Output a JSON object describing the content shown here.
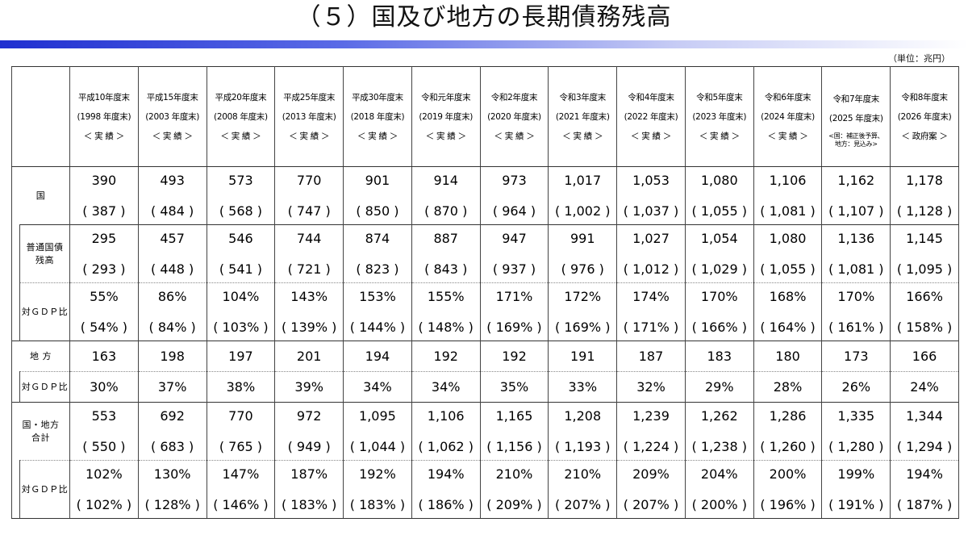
{
  "title": "（５）国及び地方の長期債務残高",
  "unit": "（単位：兆円）",
  "columns": [
    {
      "era": "平成10年度末",
      "year": "(1998 年度末)",
      "status": "＜ 実 績 ＞"
    },
    {
      "era": "平成15年度末",
      "year": "(2003 年度末)",
      "status": "＜ 実 績 ＞"
    },
    {
      "era": "平成20年度末",
      "year": "(2008 年度末)",
      "status": "＜ 実 績 ＞"
    },
    {
      "era": "平成25年度末",
      "year": "(2013 年度末)",
      "status": "＜ 実 績 ＞"
    },
    {
      "era": "平成30年度末",
      "year": "(2018 年度末)",
      "status": "＜ 実 績 ＞"
    },
    {
      "era": "令和元年度末",
      "year": "(2019 年度末)",
      "status": "＜ 実 績 ＞"
    },
    {
      "era": "令和2年度末",
      "year": "(2020 年度末)",
      "status": "＜ 実 績 ＞"
    },
    {
      "era": "令和3年度末",
      "year": "(2021 年度末)",
      "status": "＜ 実 績 ＞"
    },
    {
      "era": "令和4年度末",
      "year": "(2022 年度末)",
      "status": "＜ 実 績 ＞"
    },
    {
      "era": "令和5年度末",
      "year": "(2023 年度末)",
      "status": "＜ 実 績 ＞"
    },
    {
      "era": "令和6年度末",
      "year": "(2024 年度末)",
      "status": "＜ 実 績 ＞"
    },
    {
      "era": "令和7年度末",
      "year": "(2025 年度末)",
      "status": "",
      "note1": "<国：補正後予算、",
      "note2": "地方：見込み>"
    },
    {
      "era": "令和8年度末",
      "year": "(2026 年度末)",
      "status": "＜ 政府案 ＞"
    }
  ],
  "labels": {
    "kuni": "国",
    "futsuu_1": "普通国債",
    "futsuu_2": "残高",
    "gdp": "対ＧＤＰ比",
    "chihou": "地 方",
    "gokei_1": "国・地方",
    "gokei_2": "合計"
  },
  "rows": {
    "kuni": {
      "main": [
        "390",
        "493",
        "573",
        "770",
        "901",
        "914",
        "973",
        "1,017",
        "1,053",
        "1,080",
        "1,106",
        "1,162",
        "1,178"
      ],
      "paren": [
        "( 387 )",
        "( 484 )",
        "( 568 )",
        "( 747 )",
        "( 850 )",
        "( 870 )",
        "( 964 )",
        "( 1,002 )",
        "( 1,037 )",
        "( 1,055 )",
        "( 1,081 )",
        "( 1,107 )",
        "( 1,128 )"
      ]
    },
    "futsuu": {
      "main": [
        "295",
        "457",
        "546",
        "744",
        "874",
        "887",
        "947",
        "991",
        "1,027",
        "1,054",
        "1,080",
        "1,136",
        "1,145"
      ],
      "paren": [
        "( 293 )",
        "( 448 )",
        "( 541 )",
        "( 721 )",
        "( 823 )",
        "( 843 )",
        "( 937 )",
        "( 976 )",
        "( 1,012 )",
        "( 1,029 )",
        "( 1,055 )",
        "( 1,081 )",
        "( 1,095 )"
      ]
    },
    "kuni_gdp": {
      "main": [
        "55%",
        "86%",
        "104%",
        "143%",
        "153%",
        "155%",
        "171%",
        "172%",
        "174%",
        "170%",
        "168%",
        "170%",
        "166%"
      ],
      "paren": [
        "( 54% )",
        "( 84% )",
        "( 103% )",
        "( 139% )",
        "( 144% )",
        "( 148% )",
        "( 169% )",
        "( 169% )",
        "( 171% )",
        "( 166% )",
        "( 164% )",
        "( 161% )",
        "( 158% )"
      ]
    },
    "chihou": {
      "main": [
        "163",
        "198",
        "197",
        "201",
        "194",
        "192",
        "192",
        "191",
        "187",
        "183",
        "180",
        "173",
        "166"
      ]
    },
    "chihou_gdp": {
      "main": [
        "30%",
        "37%",
        "38%",
        "39%",
        "34%",
        "34%",
        "35%",
        "33%",
        "32%",
        "29%",
        "28%",
        "26%",
        "24%"
      ]
    },
    "gokei": {
      "main": [
        "553",
        "692",
        "770",
        "972",
        "1,095",
        "1,106",
        "1,165",
        "1,208",
        "1,239",
        "1,262",
        "1,286",
        "1,335",
        "1,344"
      ],
      "paren": [
        "( 550 )",
        "( 683 )",
        "( 765 )",
        "( 949 )",
        "( 1,044 )",
        "( 1,062 )",
        "( 1,156 )",
        "( 1,193 )",
        "( 1,224 )",
        "( 1,238 )",
        "( 1,260 )",
        "( 1,280 )",
        "( 1,294 )"
      ]
    },
    "gokei_gdp": {
      "main": [
        "102%",
        "130%",
        "147%",
        "187%",
        "192%",
        "194%",
        "210%",
        "210%",
        "209%",
        "204%",
        "200%",
        "199%",
        "194%"
      ],
      "paren": [
        "( 102% )",
        "( 128% )",
        "( 146% )",
        "( 183% )",
        "( 183% )",
        "( 186% )",
        "( 209% )",
        "( 207% )",
        "( 207% )",
        "( 200% )",
        "( 196% )",
        "( 191% )",
        "( 187% )"
      ]
    }
  }
}
